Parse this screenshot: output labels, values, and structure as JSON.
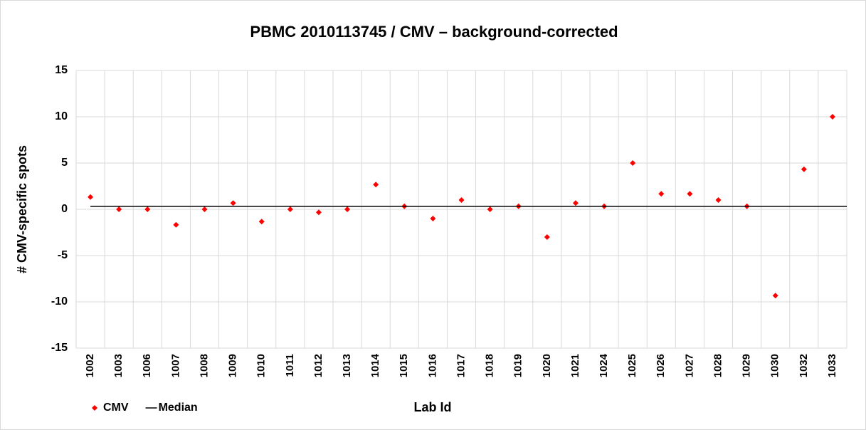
{
  "chart_data": {
    "type": "scatter",
    "title": "PBMC 2010113745 / CMV – background-corrected",
    "x_label": "Lab Id",
    "y_label": "# CMV-specific spots",
    "categories": [
      "1002",
      "1003",
      "1006",
      "1007",
      "1008",
      "1009",
      "1010",
      "1011",
      "1012",
      "1013",
      "1014",
      "1015",
      "1016",
      "1017",
      "1018",
      "1019",
      "1020",
      "1021",
      "1024",
      "1025",
      "1026",
      "1027",
      "1028",
      "1029",
      "1030",
      "1032",
      "1033"
    ],
    "series": [
      {
        "name": "CMV",
        "color": "#ff0000",
        "values": [
          1.33,
          0,
          0,
          -1.67,
          0,
          0.67,
          -1.33,
          0,
          -0.33,
          0,
          2.67,
          0.33,
          -1,
          1,
          0,
          0.33,
          -3,
          0.67,
          0.33,
          5,
          1.67,
          1.67,
          1,
          0.33,
          -9.33,
          4.33,
          10
        ]
      },
      {
        "name": "Median",
        "color": "#000000",
        "value": 0.33
      }
    ],
    "ylim": [
      -15,
      15
    ],
    "yticks": [
      -15,
      -10,
      -5,
      0,
      5,
      10,
      15
    ],
    "grid": true,
    "legend": "bottom-left"
  }
}
